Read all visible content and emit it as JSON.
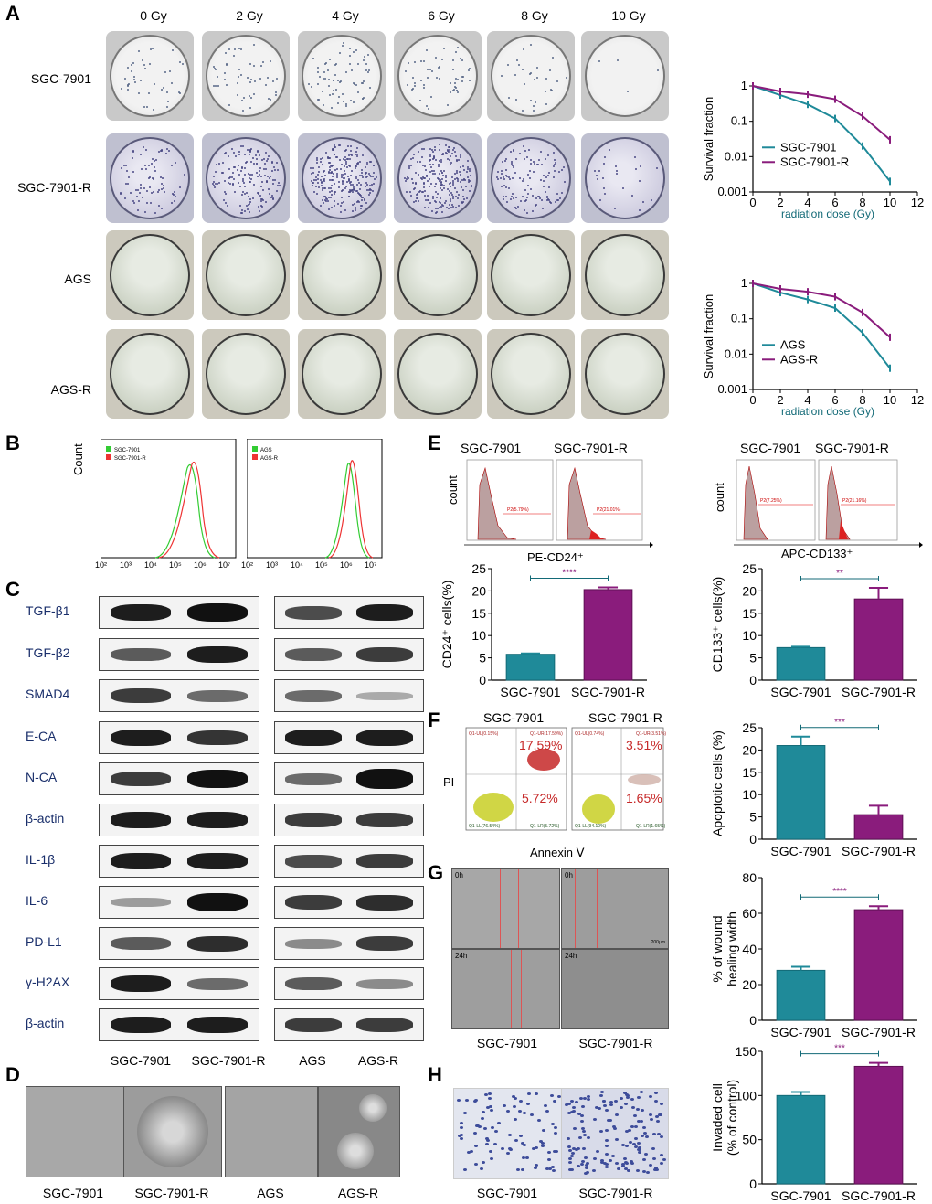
{
  "panels": {
    "A": "A",
    "B": "B",
    "C": "C",
    "D": "D",
    "E": "E",
    "F": "F",
    "G": "G",
    "H": "H"
  },
  "panelA": {
    "doses": [
      "0 Gy",
      "2 Gy",
      "4 Gy",
      "6 Gy",
      "8 Gy",
      "10 Gy"
    ],
    "rows": [
      "SGC-7901",
      "SGC-7901-R",
      "AGS",
      "AGS-R"
    ]
  },
  "panelB": {
    "ylabel": "Count",
    "ticks": [
      "10²",
      "10³",
      "10⁴",
      "10⁵",
      "10⁶",
      "10⁷"
    ],
    "legend1": [
      "SGC-7901",
      "SGC-7901-R"
    ],
    "legend2": [
      "AGS",
      "AGS-R"
    ]
  },
  "panelC": {
    "proteins": [
      "TGF-β1",
      "TGF-β2",
      "SMAD4",
      "E-CA",
      "N-CA",
      "β-actin",
      "IL-1β",
      "IL-6",
      "PD-L1",
      "γ-H2AX",
      "β-actin"
    ],
    "xcats": [
      "SGC-7901",
      "SGC-7901-R",
      "AGS",
      "AGS-R"
    ]
  },
  "panelD": {
    "labels": [
      "SGC-7901",
      "SGC-7901-R",
      "AGS",
      "AGS-R"
    ]
  },
  "panelE": {
    "groups1": [
      "SGC-7901",
      "SGC-7901-R"
    ],
    "groups2": [
      "SGC-7901",
      "SGC-7901-R"
    ],
    "flow_ylabel": "count",
    "xlabel1": "PE-CD24⁺",
    "xlabel2": "APC-CD133⁺",
    "gates1": [
      "P2(5.79%)",
      "P2(21.01%)"
    ],
    "gates2": [
      "P2(7.25%)",
      "P2(21.16%)"
    ]
  },
  "panelF": {
    "groups": [
      "SGC-7901",
      "SGC-7901-R"
    ],
    "ylabel": "PI",
    "xlabel": "Annexin Ⅴ",
    "quads_left": {
      "UL": "Q1-UL(0.15%)",
      "UR": "Q1-UR(17.59%)",
      "LL": "Q1-LL(76.54%)",
      "LR": "Q1-LR(5.72%)",
      "big_ur": "17.59%",
      "big_lr": "5.72%"
    },
    "quads_right": {
      "UL": "Q1-UL(0.74%)",
      "UR": "Q1-UR(3.51%)",
      "LL": "Q1-LL(94.10%)",
      "LR": "Q1-LR(1.65%)",
      "big_ur": "3.51%",
      "big_lr": "1.65%"
    }
  },
  "panelG": {
    "labels": [
      "SGC-7901",
      "SGC-7901-R"
    ],
    "times": [
      "0h",
      "0h",
      "24h",
      "24h"
    ],
    "scale": "200μm"
  },
  "panelH": {
    "labels": [
      "SGC-7901",
      "SGC-7901-R"
    ]
  },
  "colors": {
    "teal": "#1f8a99",
    "purple": "#8a1c7c",
    "purpleLight": "#a0448f",
    "tealDark": "#136a77"
  },
  "chart_data": [
    {
      "id": "survival-sgc",
      "type": "line",
      "xlabel": "radiation dose (Gy)",
      "ylabel": "Survival fraction",
      "yscale": "log",
      "xlim": [
        0,
        12
      ],
      "ylim": [
        0.001,
        1
      ],
      "xticks": [
        0,
        2,
        4,
        6,
        8,
        10,
        12
      ],
      "yticks": [
        0.001,
        0.01,
        0.1,
        1
      ],
      "ytick_labels": [
        "0.001",
        "0.01",
        "0.1",
        "1"
      ],
      "series": [
        {
          "name": "SGC-7901",
          "x": [
            0,
            2,
            4,
            6,
            8,
            10
          ],
          "y": [
            1,
            0.55,
            0.3,
            0.12,
            0.02,
            0.002
          ]
        },
        {
          "name": "SGC-7901-R",
          "x": [
            0,
            2,
            4,
            6,
            8,
            10
          ],
          "y": [
            1,
            0.7,
            0.58,
            0.42,
            0.14,
            0.03
          ]
        }
      ]
    },
    {
      "id": "survival-ags",
      "type": "line",
      "xlabel": "radiation dose (Gy)",
      "ylabel": "Survival fraction",
      "yscale": "log",
      "xlim": [
        0,
        12
      ],
      "ylim": [
        0.001,
        1
      ],
      "xticks": [
        0,
        2,
        4,
        6,
        8,
        10,
        12
      ],
      "yticks": [
        0.001,
        0.01,
        0.1,
        1
      ],
      "ytick_labels": [
        "0.001",
        "0.01",
        "0.1",
        "1"
      ],
      "series": [
        {
          "name": "AGS",
          "x": [
            0,
            2,
            4,
            6,
            8,
            10
          ],
          "y": [
            1,
            0.55,
            0.35,
            0.2,
            0.04,
            0.004
          ]
        },
        {
          "name": "AGS-R",
          "x": [
            0,
            2,
            4,
            6,
            8,
            10
          ],
          "y": [
            1,
            0.7,
            0.58,
            0.42,
            0.15,
            0.03
          ]
        }
      ]
    },
    {
      "id": "cd24-bar",
      "type": "bar",
      "ylabel": "CD24⁺ cells(%)",
      "categories": [
        "SGC-7901",
        "SGC-7901-R"
      ],
      "values": [
        5.8,
        20.3
      ],
      "errors": [
        0.2,
        0.5
      ],
      "ylim": [
        0,
        25
      ],
      "yticks": [
        0,
        5,
        10,
        15,
        20,
        25
      ],
      "significance": "****"
    },
    {
      "id": "cd133-bar",
      "type": "bar",
      "ylabel": "CD133⁺ cells(%)",
      "categories": [
        "SGC-7901",
        "SGC-7901-R"
      ],
      "values": [
        7.3,
        18.2
      ],
      "errors": [
        0.2,
        2.5
      ],
      "ylim": [
        0,
        25
      ],
      "yticks": [
        0,
        5,
        10,
        15,
        20,
        25
      ],
      "significance": "**"
    },
    {
      "id": "apoptosis-bar",
      "type": "bar",
      "ylabel": "Apoptotic cells (%)",
      "categories": [
        "SGC-7901",
        "SGC-7901-R"
      ],
      "values": [
        21,
        5.5
      ],
      "errors": [
        2,
        2
      ],
      "ylim": [
        0,
        25
      ],
      "yticks": [
        0,
        5,
        10,
        15,
        20,
        25
      ],
      "significance": "***"
    },
    {
      "id": "wound-bar",
      "type": "bar",
      "ylabel": "% of wound healing width",
      "categories": [
        "SGC-7901",
        "SGC-7901-R"
      ],
      "values": [
        28,
        62
      ],
      "errors": [
        2,
        2
      ],
      "ylim": [
        0,
        80
      ],
      "yticks": [
        0,
        20,
        40,
        60,
        80
      ],
      "significance": "****"
    },
    {
      "id": "invasion-bar",
      "type": "bar",
      "ylabel": "Invaded cell (% of control)",
      "categories": [
        "SGC-7901",
        "SGC-7901-R"
      ],
      "values": [
        100,
        133
      ],
      "errors": [
        4,
        4
      ],
      "ylim": [
        0,
        150
      ],
      "yticks": [
        0,
        50,
        100,
        150
      ],
      "significance": "***"
    }
  ]
}
